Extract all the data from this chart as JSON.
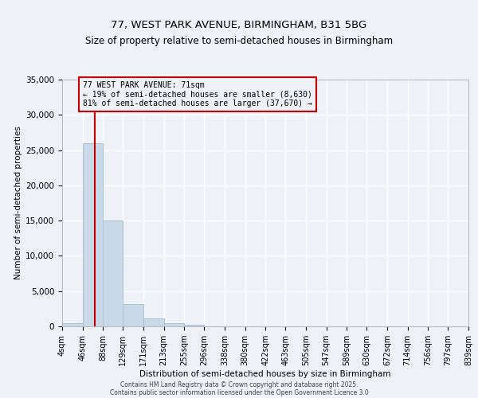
{
  "title": "77, WEST PARK AVENUE, BIRMINGHAM, B31 5BG",
  "subtitle": "Size of property relative to semi-detached houses in Birmingham",
  "xlabel": "Distribution of semi-detached houses by size in Birmingham",
  "ylabel": "Number of semi-detached properties",
  "bin_labels": [
    "4sqm",
    "46sqm",
    "88sqm",
    "129sqm",
    "171sqm",
    "213sqm",
    "255sqm",
    "296sqm",
    "338sqm",
    "380sqm",
    "422sqm",
    "463sqm",
    "505sqm",
    "547sqm",
    "589sqm",
    "630sqm",
    "672sqm",
    "714sqm",
    "756sqm",
    "797sqm",
    "839sqm"
  ],
  "bar_heights": [
    400,
    26000,
    15000,
    3200,
    1100,
    450,
    200,
    50,
    0,
    0,
    0,
    0,
    0,
    0,
    0,
    0,
    0,
    0,
    0,
    0
  ],
  "bar_color": "#c9d9e8",
  "bar_edge_color": "#a8c0d0",
  "ylim": [
    0,
    35000
  ],
  "yticks": [
    0,
    5000,
    10000,
    15000,
    20000,
    25000,
    30000,
    35000
  ],
  "property_size": 71,
  "property_line_color": "#cc0000",
  "annotation_text": "77 WEST PARK AVENUE: 71sqm\n← 19% of semi-detached houses are smaller (8,630)\n81% of semi-detached houses are larger (37,670) →",
  "annotation_box_color": "#cc0000",
  "footer_line1": "Contains HM Land Registry data © Crown copyright and database right 2025.",
  "footer_line2": "Contains public sector information licensed under the Open Government Licence 3.0",
  "background_color": "#eef2f7",
  "grid_color": "#ffffff",
  "bin_edges": [
    4,
    46,
    88,
    129,
    171,
    213,
    255,
    296,
    338,
    380,
    422,
    463,
    505,
    547,
    589,
    630,
    672,
    714,
    756,
    797,
    839
  ]
}
